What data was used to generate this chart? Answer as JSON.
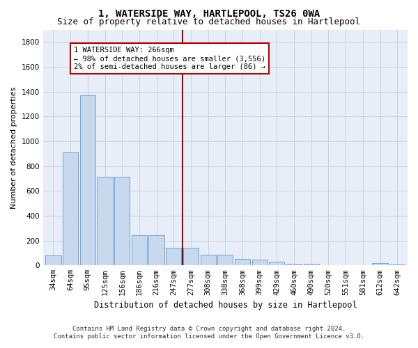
{
  "title": "1, WATERSIDE WAY, HARTLEPOOL, TS26 0WA",
  "subtitle": "Size of property relative to detached houses in Hartlepool",
  "xlabel": "Distribution of detached houses by size in Hartlepool",
  "ylabel": "Number of detached properties",
  "categories": [
    "34sqm",
    "64sqm",
    "95sqm",
    "125sqm",
    "156sqm",
    "186sqm",
    "216sqm",
    "247sqm",
    "277sqm",
    "308sqm",
    "338sqm",
    "368sqm",
    "399sqm",
    "429sqm",
    "460sqm",
    "490sqm",
    "520sqm",
    "551sqm",
    "581sqm",
    "612sqm",
    "642sqm"
  ],
  "values": [
    80,
    910,
    1370,
    715,
    715,
    245,
    245,
    140,
    140,
    85,
    85,
    50,
    45,
    30,
    15,
    15,
    0,
    0,
    0,
    20,
    5
  ],
  "bar_color": "#c8d8ed",
  "bar_edge_color": "#5b9bd5",
  "vline_x_index": 8,
  "vline_color": "#990000",
  "annotation_text": "1 WATERSIDE WAY: 266sqm\n← 98% of detached houses are smaller (3,556)\n2% of semi-detached houses are larger (86) →",
  "annotation_box_color": "#bb0000",
  "ylim": [
    0,
    1900
  ],
  "yticks": [
    0,
    200,
    400,
    600,
    800,
    1000,
    1200,
    1400,
    1600,
    1800
  ],
  "grid_color": "#c8d0e0",
  "background_color": "#e8eef8",
  "footnote_line1": "Contains HM Land Registry data © Crown copyright and database right 2024.",
  "footnote_line2": "Contains public sector information licensed under the Open Government Licence v3.0.",
  "title_fontsize": 10,
  "subtitle_fontsize": 9,
  "xlabel_fontsize": 8.5,
  "ylabel_fontsize": 8,
  "tick_fontsize": 7.5,
  "annotation_fontsize": 7.5,
  "footnote_fontsize": 6.5
}
